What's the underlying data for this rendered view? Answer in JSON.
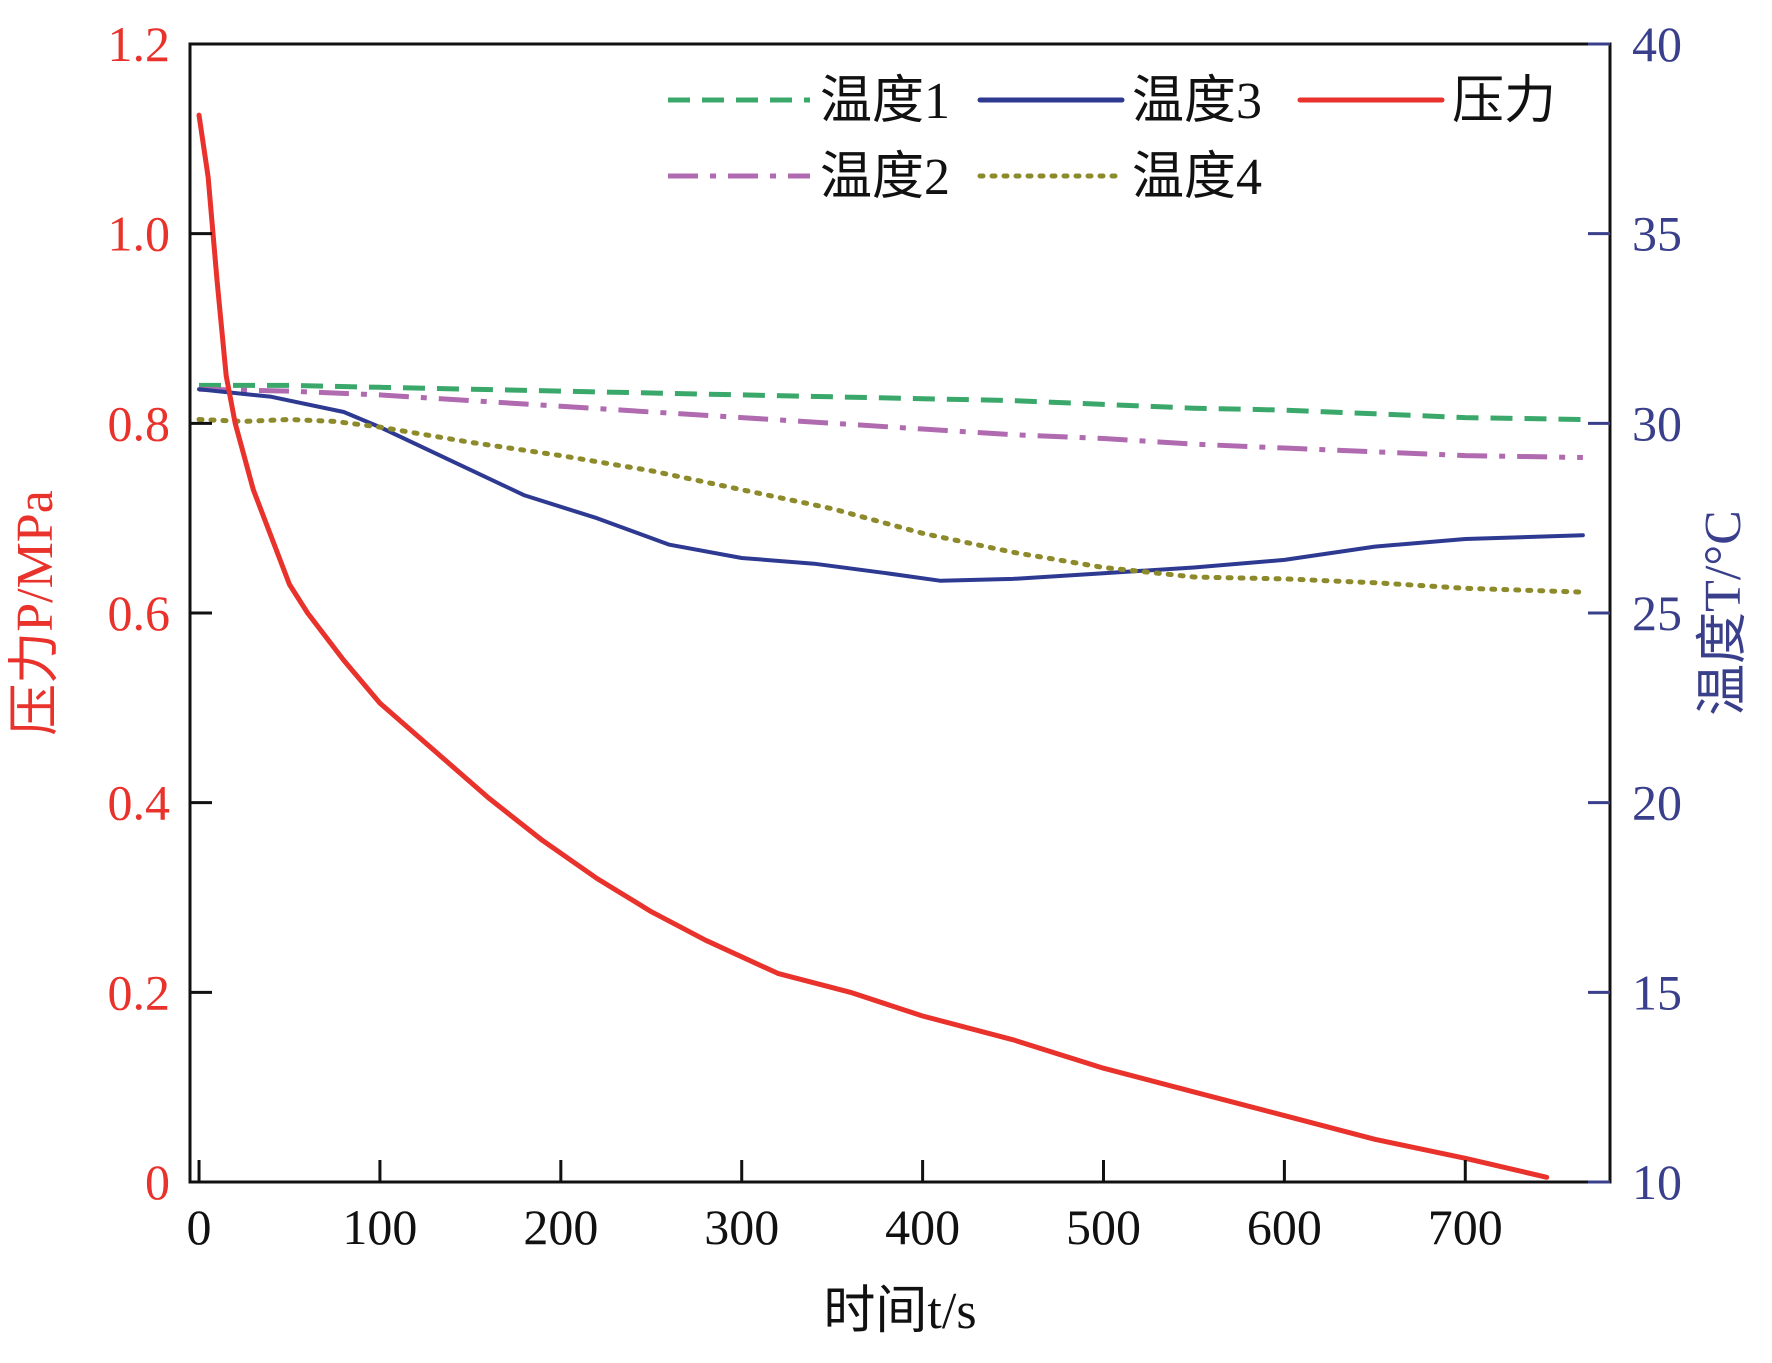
{
  "colors": {
    "pressure": "#e8322b",
    "temp1": "#3aa86a",
    "temp2": "#b06ab0",
    "temp3": "#2e3a92",
    "temp4": "#8d8a2c",
    "left_axis": "#e8322b",
    "right_axis": "#3a3f8c",
    "frame": "#111111"
  },
  "chart_data": {
    "type": "line",
    "xlabel": "时间t/s",
    "ylabel_left": "压力P/MPa",
    "ylabel_right": "温度T/°C",
    "xlim": [
      -5,
      780
    ],
    "ylim_left": [
      0,
      1.2
    ],
    "ylim_right": [
      10,
      40
    ],
    "grid": false,
    "legend_position": "top-right",
    "x_ticks": [
      {
        "value": 0,
        "label": "0"
      },
      {
        "value": 100,
        "label": "100"
      },
      {
        "value": 200,
        "label": "200"
      },
      {
        "value": 300,
        "label": "300"
      },
      {
        "value": 400,
        "label": "400"
      },
      {
        "value": 500,
        "label": "500"
      },
      {
        "value": 600,
        "label": "600"
      },
      {
        "value": 700,
        "label": "700"
      }
    ],
    "y_left_ticks": [
      {
        "value": 0,
        "label": "0"
      },
      {
        "value": 0.2,
        "label": "0.2"
      },
      {
        "value": 0.4,
        "label": "0.4"
      },
      {
        "value": 0.6,
        "label": "0.6"
      },
      {
        "value": 0.8,
        "label": "0.8"
      },
      {
        "value": 1.0,
        "label": "1.0"
      },
      {
        "value": 1.2,
        "label": "1.2"
      }
    ],
    "y_right_ticks": [
      {
        "value": 10,
        "label": "10"
      },
      {
        "value": 15,
        "label": "15"
      },
      {
        "value": 20,
        "label": "20"
      },
      {
        "value": 25,
        "label": "25"
      },
      {
        "value": 30,
        "label": "30"
      },
      {
        "value": 35,
        "label": "35"
      },
      {
        "value": 40,
        "label": "40"
      }
    ],
    "series": [
      {
        "name": "温度1",
        "axis": "right",
        "style": "dashed",
        "color_key": "temp1",
        "x": [
          0,
          50,
          100,
          150,
          200,
          250,
          300,
          350,
          400,
          450,
          500,
          550,
          600,
          650,
          700,
          765
        ],
        "y": [
          31.0,
          31.0,
          30.95,
          30.9,
          30.85,
          30.8,
          30.75,
          30.7,
          30.65,
          30.6,
          30.5,
          30.4,
          30.35,
          30.25,
          30.15,
          30.1
        ]
      },
      {
        "name": "温度2",
        "axis": "right",
        "style": "dashdot",
        "color_key": "temp2",
        "x": [
          0,
          50,
          100,
          150,
          200,
          250,
          300,
          350,
          400,
          450,
          500,
          550,
          600,
          650,
          700,
          765
        ],
        "y": [
          30.9,
          30.85,
          30.75,
          30.6,
          30.45,
          30.3,
          30.15,
          30.0,
          29.85,
          29.7,
          29.6,
          29.45,
          29.35,
          29.25,
          29.15,
          29.1
        ]
      },
      {
        "name": "温度3",
        "axis": "right",
        "style": "solid",
        "color_key": "temp3",
        "x": [
          0,
          40,
          80,
          100,
          140,
          180,
          220,
          260,
          300,
          340,
          380,
          410,
          450,
          500,
          550,
          600,
          650,
          700,
          765
        ],
        "y": [
          30.9,
          30.7,
          30.3,
          29.9,
          29.0,
          28.1,
          27.5,
          26.8,
          26.45,
          26.3,
          26.05,
          25.85,
          25.9,
          26.05,
          26.2,
          26.4,
          26.75,
          26.95,
          27.05
        ]
      },
      {
        "name": "温度4",
        "axis": "right",
        "style": "dotted",
        "color_key": "temp4",
        "x": [
          0,
          25,
          50,
          75,
          100,
          150,
          200,
          250,
          300,
          350,
          400,
          450,
          500,
          550,
          600,
          650,
          700,
          765
        ],
        "y": [
          30.1,
          30.05,
          30.1,
          30.05,
          29.9,
          29.5,
          29.15,
          28.75,
          28.25,
          27.75,
          27.1,
          26.6,
          26.2,
          25.95,
          25.9,
          25.8,
          25.65,
          25.55
        ]
      },
      {
        "name": "压力",
        "axis": "left",
        "style": "solid",
        "color_key": "pressure",
        "x": [
          0,
          5,
          10,
          15,
          20,
          30,
          40,
          50,
          60,
          80,
          100,
          130,
          160,
          190,
          220,
          250,
          280,
          320,
          360,
          400,
          450,
          500,
          550,
          600,
          650,
          700,
          745
        ],
        "y": [
          1.125,
          1.06,
          0.95,
          0.85,
          0.8,
          0.73,
          0.68,
          0.63,
          0.6,
          0.55,
          0.505,
          0.455,
          0.405,
          0.36,
          0.32,
          0.285,
          0.255,
          0.22,
          0.2,
          0.175,
          0.15,
          0.12,
          0.095,
          0.07,
          0.045,
          0.025,
          0.005
        ]
      }
    ]
  }
}
